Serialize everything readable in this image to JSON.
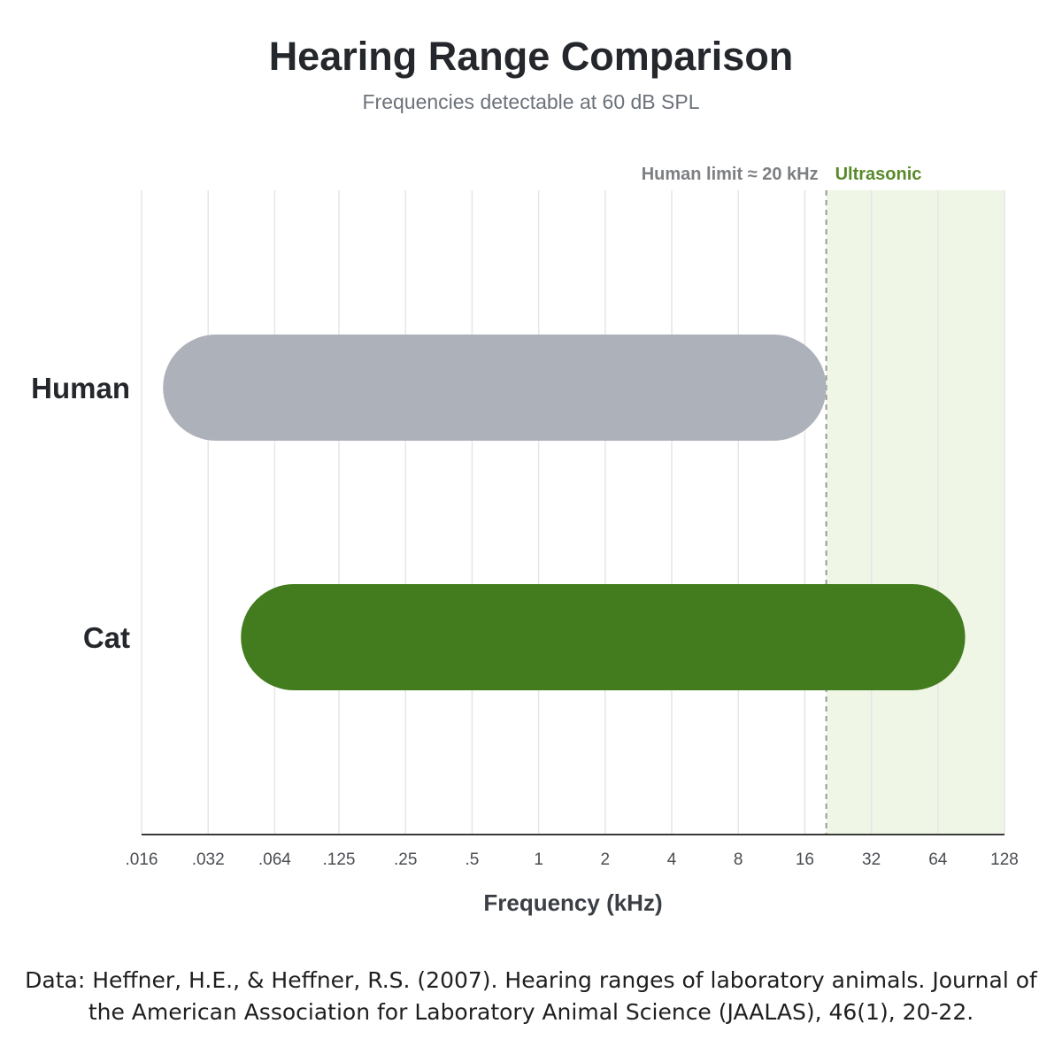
{
  "chart_data": {
    "type": "bar",
    "orientation": "horizontal-range",
    "title": "Hearing Range Comparison",
    "subtitle": "Frequencies detectable at 60 dB SPL",
    "xlabel": "Frequency (kHz)",
    "ylabel": "",
    "xscale": "log2",
    "xlim": [
      0.016,
      128
    ],
    "ticks": [
      0.016,
      0.032,
      0.064,
      0.125,
      0.25,
      0.5,
      1,
      2,
      4,
      8,
      16,
      32,
      64,
      128
    ],
    "tick_labels": [
      ".016",
      ".032",
      ".064",
      ".125",
      ".25",
      ".5",
      "1",
      "2",
      "4",
      "8",
      "16",
      "32",
      "64",
      "128"
    ],
    "grid": true,
    "series": [
      {
        "name": "Human",
        "low": 0.02,
        "high": 20,
        "color": "#adb2ba"
      },
      {
        "name": "Cat",
        "low": 0.045,
        "high": 85,
        "color": "#437c1f"
      }
    ],
    "reference_line": {
      "value": 20,
      "label": "Human limit ≈ 20 kHz",
      "color": "#9a9a9a"
    },
    "shaded_region": {
      "from": 20,
      "to": 128,
      "label": "Ultrasonic",
      "fill": "#eff6e6",
      "label_color": "#5a8a2a"
    }
  },
  "caption": {
    "line1": "Data: Heffner, H.E., & Heffner, R.S. (2007). Hearing ranges of laboratory animals. Journal of",
    "line2": "the American Association for Laboratory Animal Science (JAALAS), 46(1), 20-22."
  }
}
